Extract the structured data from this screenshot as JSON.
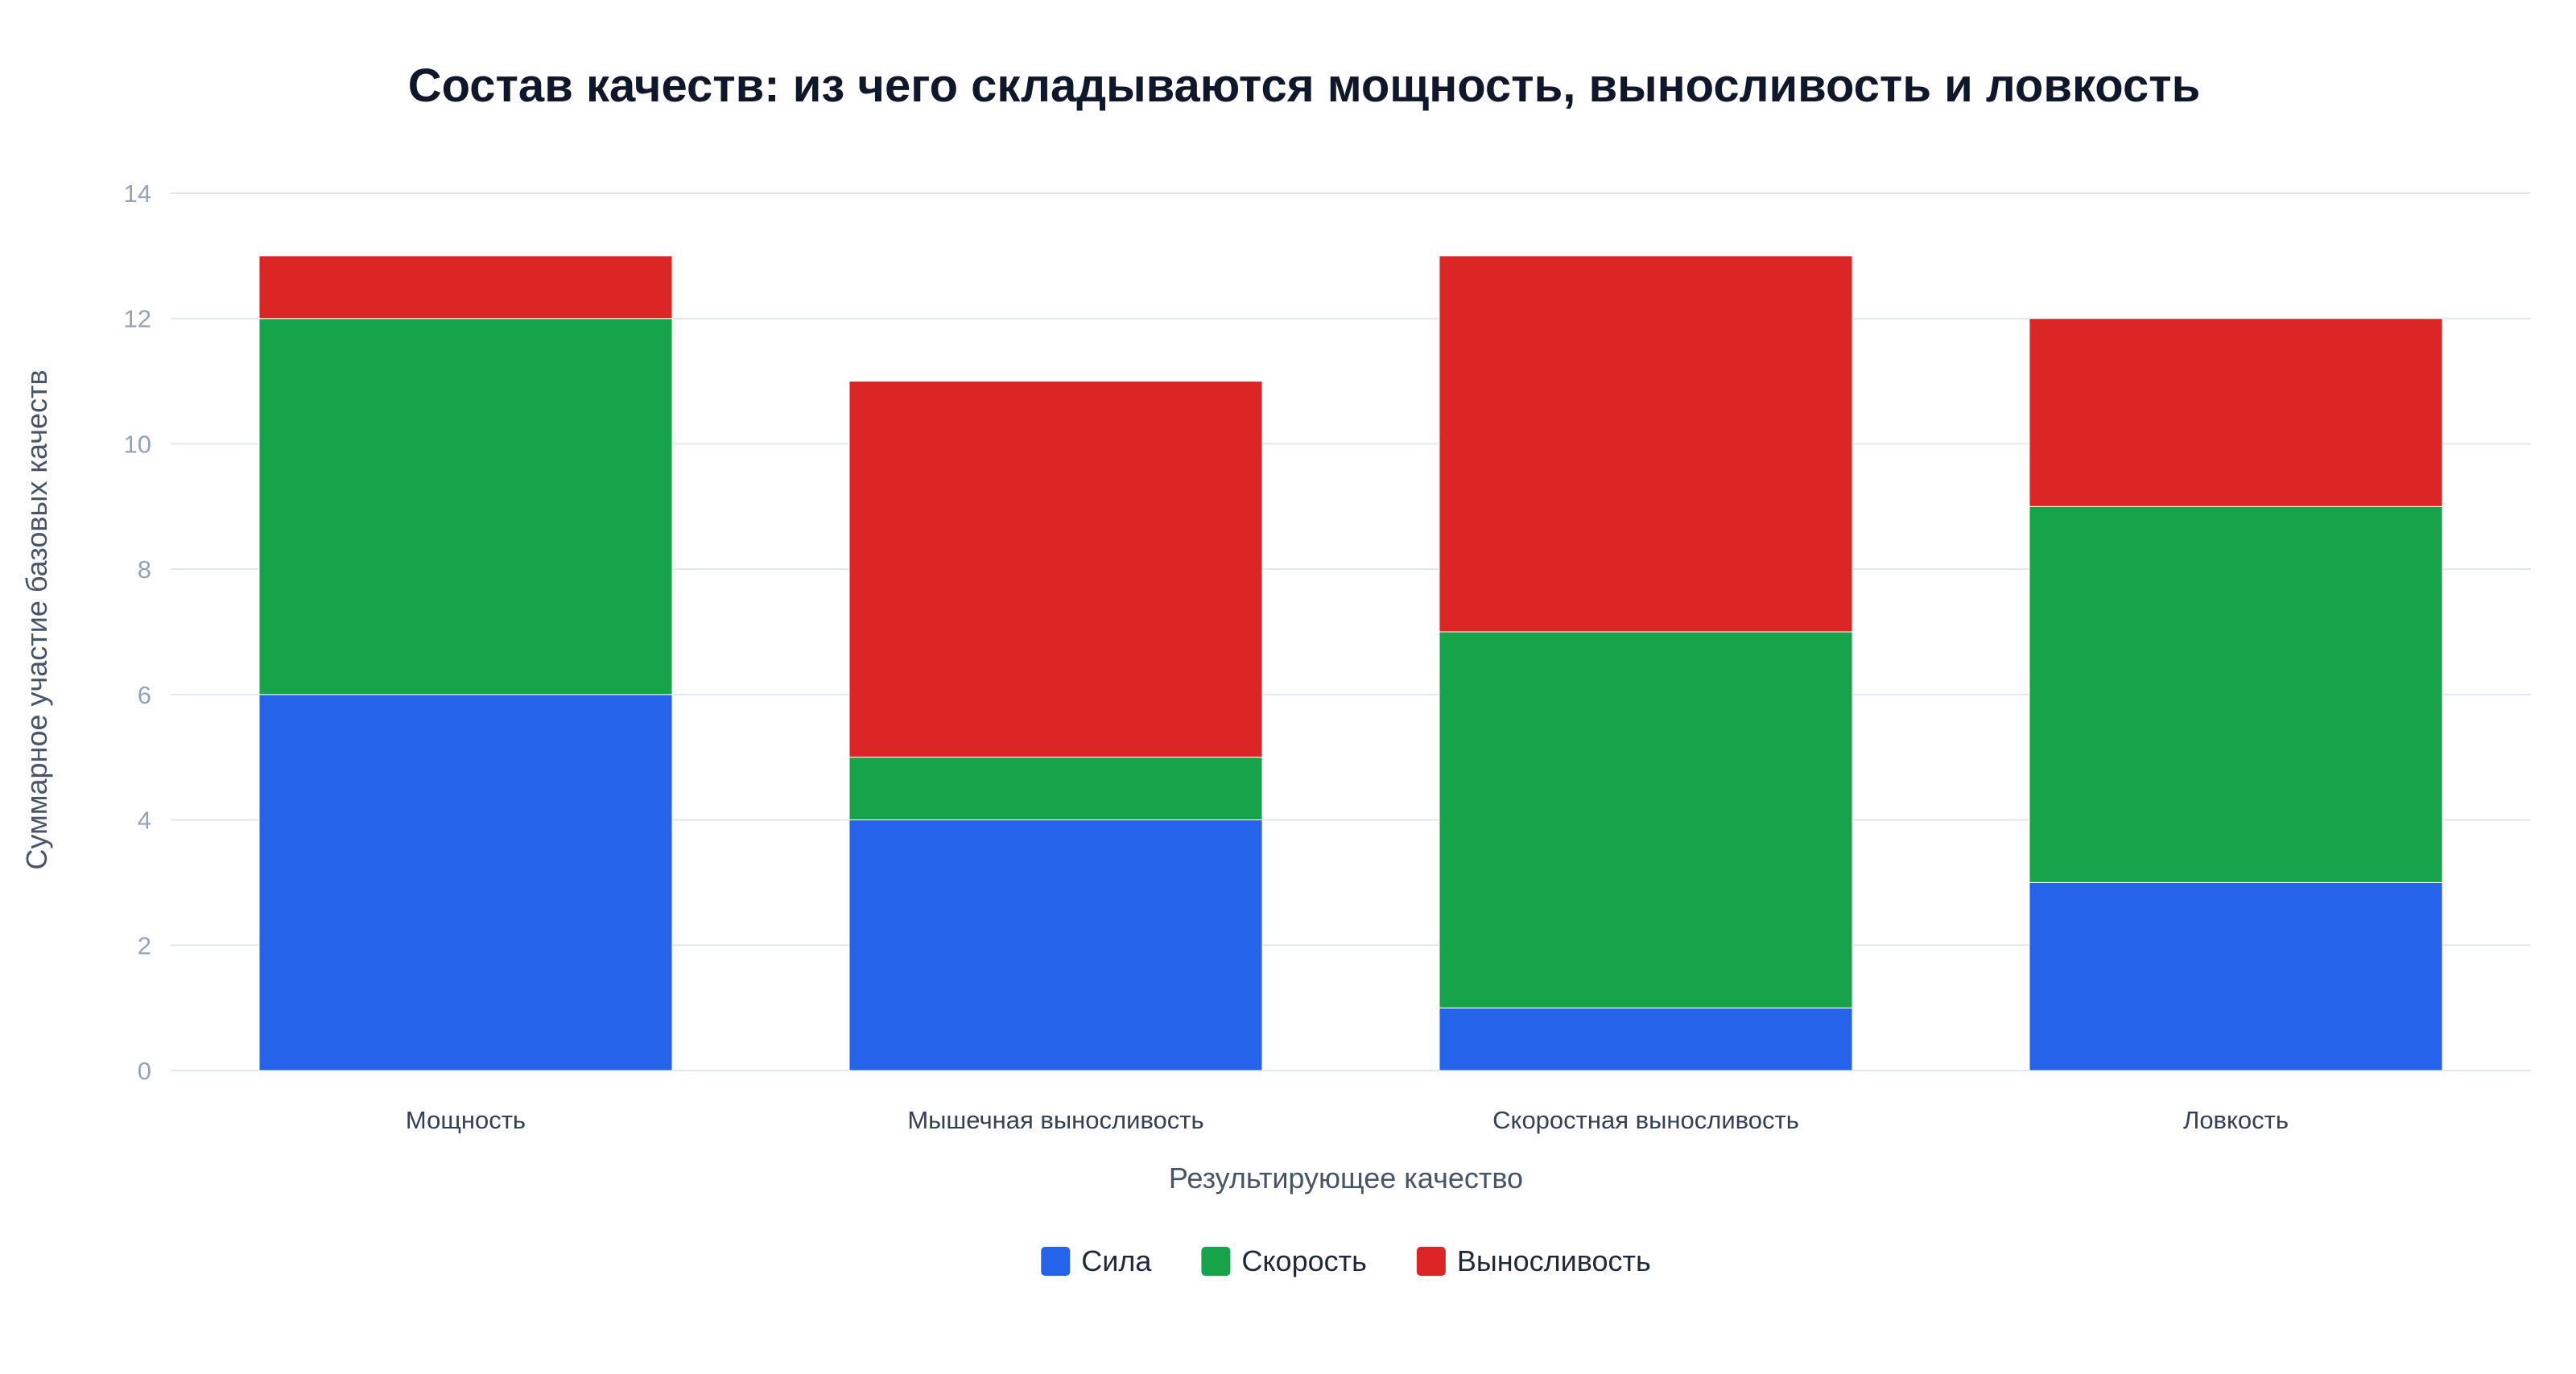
{
  "chart_data": {
    "type": "bar",
    "stacked": true,
    "title": "Состав качеств: из чего складываются мощность, выносливость и ловкость",
    "xlabel": "Результирующее качество",
    "ylabel": "Суммарное участие базовых качеств",
    "ylim": [
      0,
      14
    ],
    "yticks": [
      0,
      2,
      4,
      6,
      8,
      10,
      12,
      14
    ],
    "grid": true,
    "legend_position": "bottom-center",
    "categories": [
      "Мощность",
      "Мышечная выносливость",
      "Скоростная выносливость",
      "Ловкость"
    ],
    "series": [
      {
        "name": "Сила",
        "color": "#2563eb",
        "values": [
          6,
          4,
          1,
          3
        ]
      },
      {
        "name": "Скорость",
        "color": "#16a34a",
        "values": [
          6,
          1,
          6,
          6
        ]
      },
      {
        "name": "Выносливость",
        "color": "#dc2626",
        "values": [
          1,
          6,
          6,
          3
        ]
      }
    ]
  }
}
